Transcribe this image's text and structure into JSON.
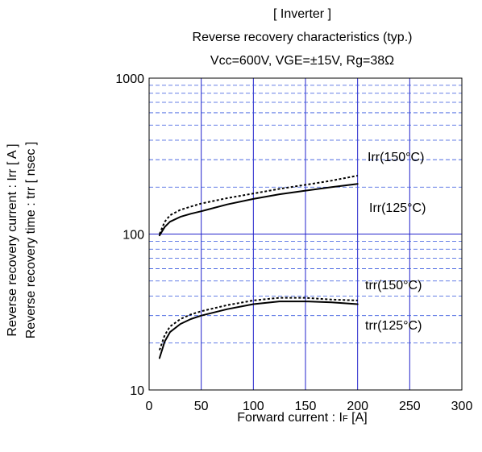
{
  "chart_data": {
    "type": "line",
    "title": "[ Inverter ]",
    "subtitle": "Reverse recovery characteristics  (typ.)",
    "conditions": "Vcc=600V,  VGE=±15V,  Rg=38Ω",
    "xlabel": "Forward current : I",
    "xlabel_sub": "F",
    "xlabel_unit": " [A]",
    "ylabel_line1": "Reverse recovery current  :  Irr  [ A ]",
    "ylabel_line2": "Reverse recovery time  :  trr  [ nsec ]",
    "xlim": [
      0,
      300
    ],
    "ylim": [
      10,
      1000
    ],
    "yscale": "log",
    "grid": true,
    "x_ticks": [
      0,
      50,
      100,
      150,
      200,
      250,
      300
    ],
    "y_ticks": [
      10,
      100,
      1000
    ],
    "y_tick_labels": [
      "10",
      "100",
      "1000"
    ],
    "series": [
      {
        "name": "Irr(150°C)",
        "style": "dotted",
        "x": [
          10,
          15,
          20,
          30,
          40,
          50,
          75,
          100,
          125,
          150,
          175,
          200
        ],
        "y": [
          100,
          120,
          132,
          143,
          150,
          157,
          170,
          182,
          195,
          207,
          220,
          237
        ]
      },
      {
        "name": "Irr(125°C)",
        "style": "solid",
        "x": [
          10,
          15,
          20,
          30,
          40,
          50,
          75,
          100,
          125,
          150,
          175,
          200
        ],
        "y": [
          98,
          111,
          120,
          129,
          135,
          140,
          155,
          168,
          180,
          190,
          200,
          210
        ]
      },
      {
        "name": "trr(150°C)",
        "style": "dotted",
        "x": [
          10,
          15,
          20,
          30,
          40,
          50,
          75,
          100,
          125,
          150,
          175,
          200
        ],
        "y": [
          18,
          22.5,
          25.5,
          28.5,
          30.5,
          32,
          35,
          37.5,
          39,
          39,
          38,
          37.5
        ]
      },
      {
        "name": "trr(125°C)",
        "style": "solid",
        "x": [
          10,
          15,
          20,
          30,
          40,
          50,
          75,
          100,
          125,
          150,
          175,
          200
        ],
        "y": [
          16,
          20.5,
          23.5,
          26.5,
          28.5,
          30,
          33,
          35.5,
          37,
          37,
          36.5,
          35.5
        ]
      }
    ]
  },
  "colors": {
    "axis": "#0000cc",
    "grid_major": "#2222cc",
    "grid_minor": "#3355dd",
    "curve": "#000000"
  }
}
